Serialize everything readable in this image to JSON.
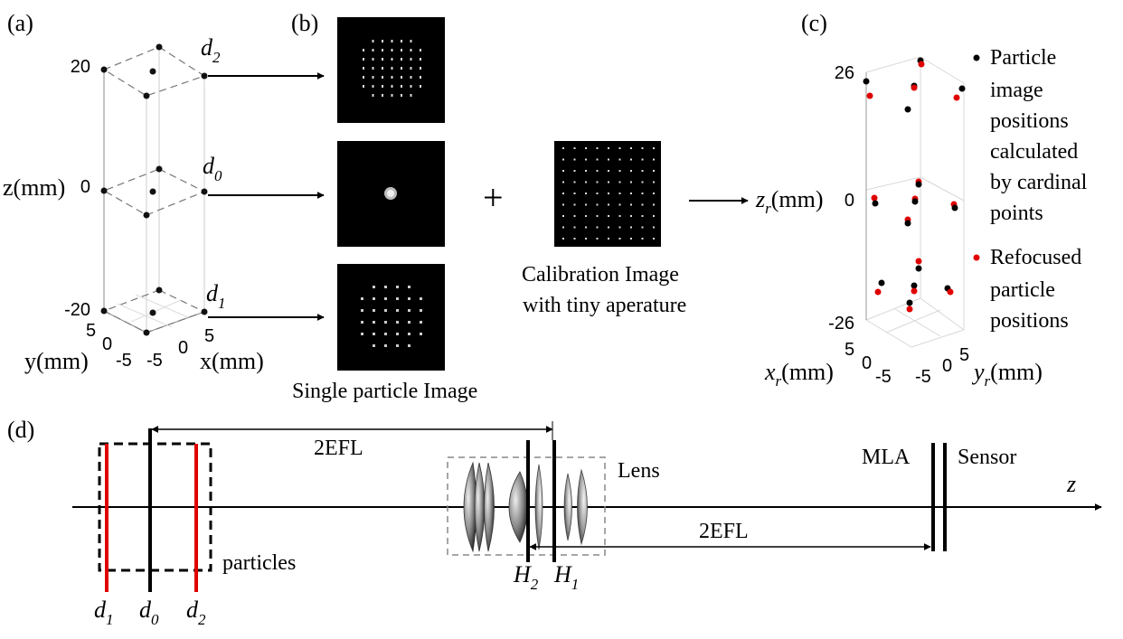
{
  "panels": {
    "a": {
      "label": "(a)",
      "zlabel": "z(mm)",
      "ztick_top": "20",
      "ztick_mid": "0",
      "ztick_bot": "-20",
      "ylabel": "y(mm)",
      "yticks": [
        "5",
        "0",
        "-5"
      ],
      "xlabel": "x(mm)",
      "xticks": [
        "-5",
        "0",
        "5"
      ],
      "planes": [
        {
          "sym": "d",
          "sub": "2"
        },
        {
          "sym": "d",
          "sub": "0"
        },
        {
          "sym": "d",
          "sub": "1"
        }
      ]
    },
    "b": {
      "label": "(b)",
      "caption": "Single particle Image",
      "plus": "+",
      "calib_line1": "Calibration Image",
      "calib_line2": "with tiny aperature"
    },
    "c": {
      "label": "(c)",
      "zlabel_sym": "z",
      "zlabel_sub": "r",
      "zlabel_unit": "(mm)",
      "ztick_top": "26",
      "ztick_mid": "0",
      "ztick_bot": "-26",
      "xlabel_sym": "x",
      "xlabel_sub": "r",
      "xlabel_unit": "(mm)",
      "xticks": [
        "5",
        "0",
        "-5"
      ],
      "ylabel_sym": "y",
      "ylabel_sub": "r",
      "ylabel_unit": "(mm)",
      "yticks": [
        "-5",
        "0",
        "5"
      ],
      "legend": [
        {
          "color": "#000000",
          "lines": [
            "Particle",
            "image",
            "positions",
            "calculated",
            "by cardinal",
            "points"
          ]
        },
        {
          "color": "#e00000",
          "lines": [
            "Refocused",
            "particle",
            "positions"
          ]
        }
      ]
    },
    "d": {
      "label": "(d)",
      "efl_left": "2EFL",
      "efl_right": "2EFL",
      "lens": "Lens",
      "mla": "MLA",
      "sensor": "Sensor",
      "axis": "z",
      "particles": "particles",
      "planes": [
        {
          "sym": "d",
          "sub": "1"
        },
        {
          "sym": "d",
          "sub": "0"
        },
        {
          "sym": "d",
          "sub": "2"
        }
      ],
      "principal": [
        {
          "sym": "H",
          "sub": "2"
        },
        {
          "sym": "H",
          "sub": "1"
        }
      ]
    }
  },
  "colors": {
    "red_plane": "#e00000",
    "red_point": "#e00000",
    "black": "#000000"
  }
}
